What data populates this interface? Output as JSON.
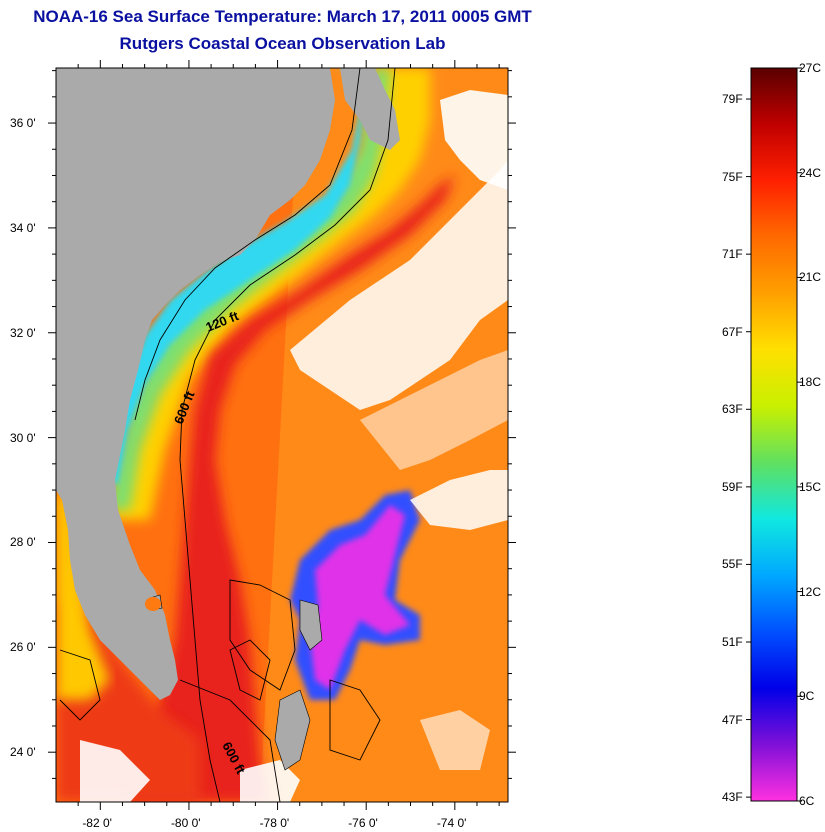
{
  "title": "NOAA-16 Sea Surface Temperature:  March 17, 2011 0005 GMT",
  "subtitle": "Rutgers Coastal Ocean Observation Lab",
  "map": {
    "lat_ticks": [
      {
        "value": 36,
        "label": "36 0'"
      },
      {
        "value": 34,
        "label": "34 0'"
      },
      {
        "value": 32,
        "label": "32 0'"
      },
      {
        "value": 30,
        "label": "30 0'"
      },
      {
        "value": 28,
        "label": "28 0'"
      },
      {
        "value": 26,
        "label": "26 0'"
      },
      {
        "value": 24,
        "label": "24 0'"
      }
    ],
    "lon_ticks": [
      {
        "value": -82,
        "label": "-82 0'"
      },
      {
        "value": -80,
        "label": "-80 0'"
      },
      {
        "value": -78,
        "label": "-78 0'"
      },
      {
        "value": -76,
        "label": "-76 0'"
      },
      {
        "value": -74,
        "label": "-74 0'"
      }
    ],
    "lat_range": [
      23.05,
      37.05
    ],
    "lon_range": [
      -83.0,
      -72.8
    ],
    "contour_labels": [
      {
        "text": "120 ft"
      },
      {
        "text": "600 ft"
      },
      {
        "text": "600 ft"
      }
    ],
    "colors": {
      "land": "#aaaaaa",
      "cloud": "#ffffff",
      "gulf_stream": "#e0201a",
      "shelf_cold": "#30d0ff",
      "bank_magenta": "#e030e8"
    }
  },
  "colorbar": {
    "fahrenheit_ticks": [
      {
        "value": 79,
        "label": "79F"
      },
      {
        "value": 75,
        "label": "75F"
      },
      {
        "value": 71,
        "label": "71F"
      },
      {
        "value": 67,
        "label": "67F"
      },
      {
        "value": 63,
        "label": "63F"
      },
      {
        "value": 59,
        "label": "59F"
      },
      {
        "value": 55,
        "label": "55F"
      },
      {
        "value": 51,
        "label": "51F"
      },
      {
        "value": 47,
        "label": "47F"
      },
      {
        "value": 43,
        "label": "43F"
      }
    ],
    "celsius_ticks": [
      {
        "value": 27,
        "label": "27C"
      },
      {
        "value": 24,
        "label": "24C"
      },
      {
        "value": 21,
        "label": "21C"
      },
      {
        "value": 18,
        "label": "18C"
      },
      {
        "value": 15,
        "label": "15C"
      },
      {
        "value": 12,
        "label": "12C"
      },
      {
        "value": 9,
        "label": "9C"
      },
      {
        "value": 6,
        "label": "6C"
      }
    ],
    "range_c": [
      6,
      27
    ],
    "gradient_colors": [
      "#5a0000",
      "#c00000",
      "#ff2000",
      "#ff6a00",
      "#ffa000",
      "#ffe000",
      "#c8f000",
      "#60e060",
      "#10e8e0",
      "#00a8ff",
      "#0050ff",
      "#0000e8",
      "#8010d8",
      "#ff30e0"
    ]
  }
}
